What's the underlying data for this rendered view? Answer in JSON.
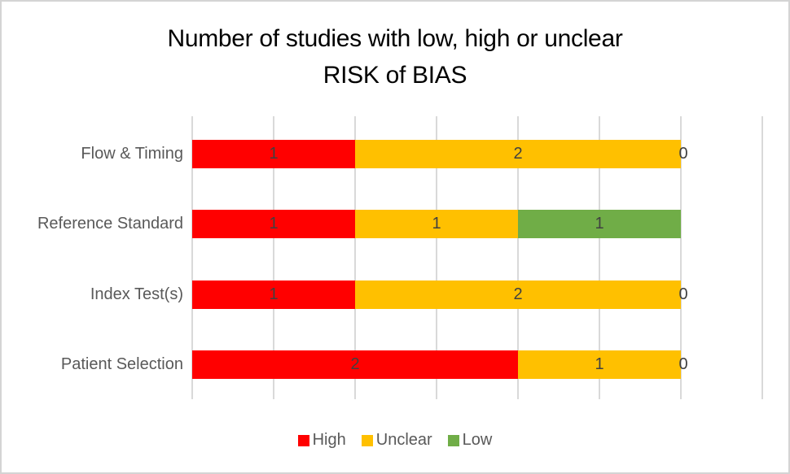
{
  "chart_data": {
    "type": "bar",
    "orientation": "horizontal",
    "stacked": true,
    "title": "Number of studies with low, high or unclear RISK of BIAS",
    "title_lines": [
      "Number of studies with low, high or unclear",
      "RISK of BIAS"
    ],
    "categories": [
      "Flow & Timing",
      "Reference Standard",
      "Index Test(s)",
      "Patient Selection"
    ],
    "series": [
      {
        "name": "High",
        "color": "#FF0000",
        "values": [
          1,
          1,
          1,
          2
        ]
      },
      {
        "name": "Unclear",
        "color": "#FFC000",
        "values": [
          2,
          1,
          2,
          1
        ]
      },
      {
        "name": "Low",
        "color": "#70AD47",
        "values": [
          0,
          1,
          0,
          0
        ]
      }
    ],
    "xlim": [
      0,
      3.5
    ],
    "gridline_interval": 0.5,
    "grid": true,
    "data_labels": true,
    "legend_position": "bottom",
    "legend": [
      "High",
      "Unclear",
      "Low"
    ]
  },
  "colors": {
    "background": "#FFFFFF",
    "border": "#D4D4D4",
    "grid": "#D9D9D9",
    "title_text": "#000000",
    "category_label_text": "#595959",
    "data_label_text": "#404040",
    "legend_text": "#595959"
  }
}
